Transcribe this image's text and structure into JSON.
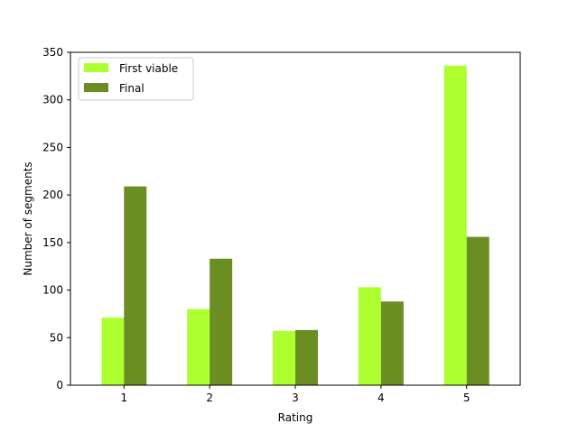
{
  "chart_data": {
    "type": "bar",
    "categories": [
      "1",
      "2",
      "3",
      "4",
      "5"
    ],
    "series": [
      {
        "name": "First viable",
        "values": [
          71,
          80,
          57,
          103,
          336
        ],
        "color": "#adff2f"
      },
      {
        "name": "Final",
        "values": [
          209,
          133,
          58,
          88,
          156
        ],
        "color": "#6b8e23"
      }
    ],
    "title": "",
    "xlabel": "Rating",
    "ylabel": "Number of segments",
    "ylim": [
      0,
      350
    ],
    "yticks": [
      "0",
      "50",
      "100",
      "150",
      "200",
      "250",
      "300",
      "350"
    ],
    "grid": false,
    "legend_position": "top-left"
  }
}
